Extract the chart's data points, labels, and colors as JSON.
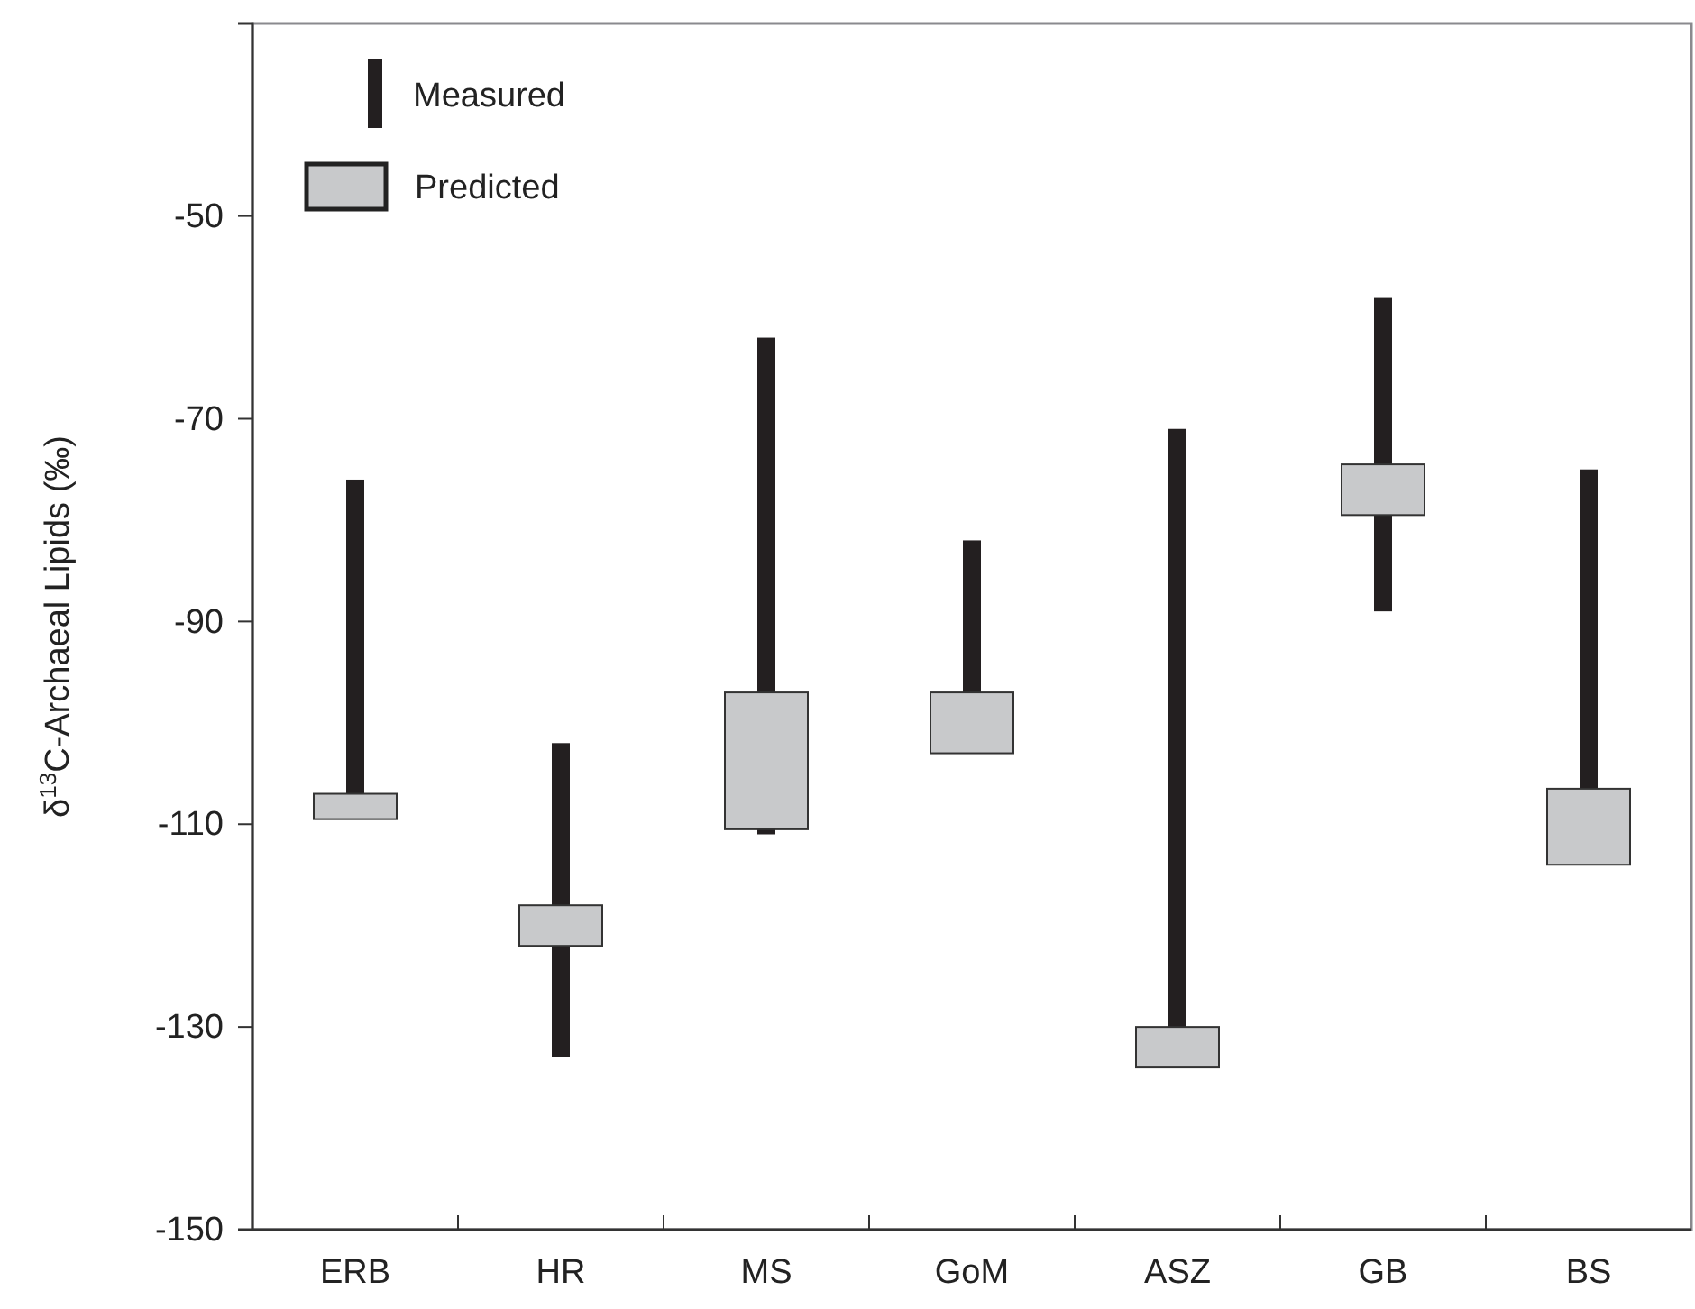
{
  "chart_data": {
    "type": "bar",
    "ylabel": "δ$^{13}$C-Archaeal Lipids (‰)",
    "categories": [
      "ERB",
      "HR",
      "MS",
      "GoM",
      "ASZ",
      "GB",
      "BS"
    ],
    "series": [
      {
        "name": "Measured",
        "color": "#231f20",
        "base": [
          -107,
          -133,
          -111,
          -97,
          -130,
          -89,
          -107
        ],
        "values": [
          31,
          31,
          49,
          15,
          59,
          31,
          32
        ]
      },
      {
        "name": "Predicted",
        "color": "#c8c9cb",
        "base": [
          -109.5,
          -122,
          -110.5,
          -103,
          -134,
          -79.5,
          -114
        ],
        "values": [
          2.5,
          4,
          13.5,
          6,
          4,
          5,
          7.5
        ]
      }
    ],
    "ylim": [
      -150,
      -31
    ],
    "yticks": [
      -50,
      -70,
      -90,
      -110,
      -130,
      -150
    ],
    "grid": false,
    "legend": "top left"
  }
}
